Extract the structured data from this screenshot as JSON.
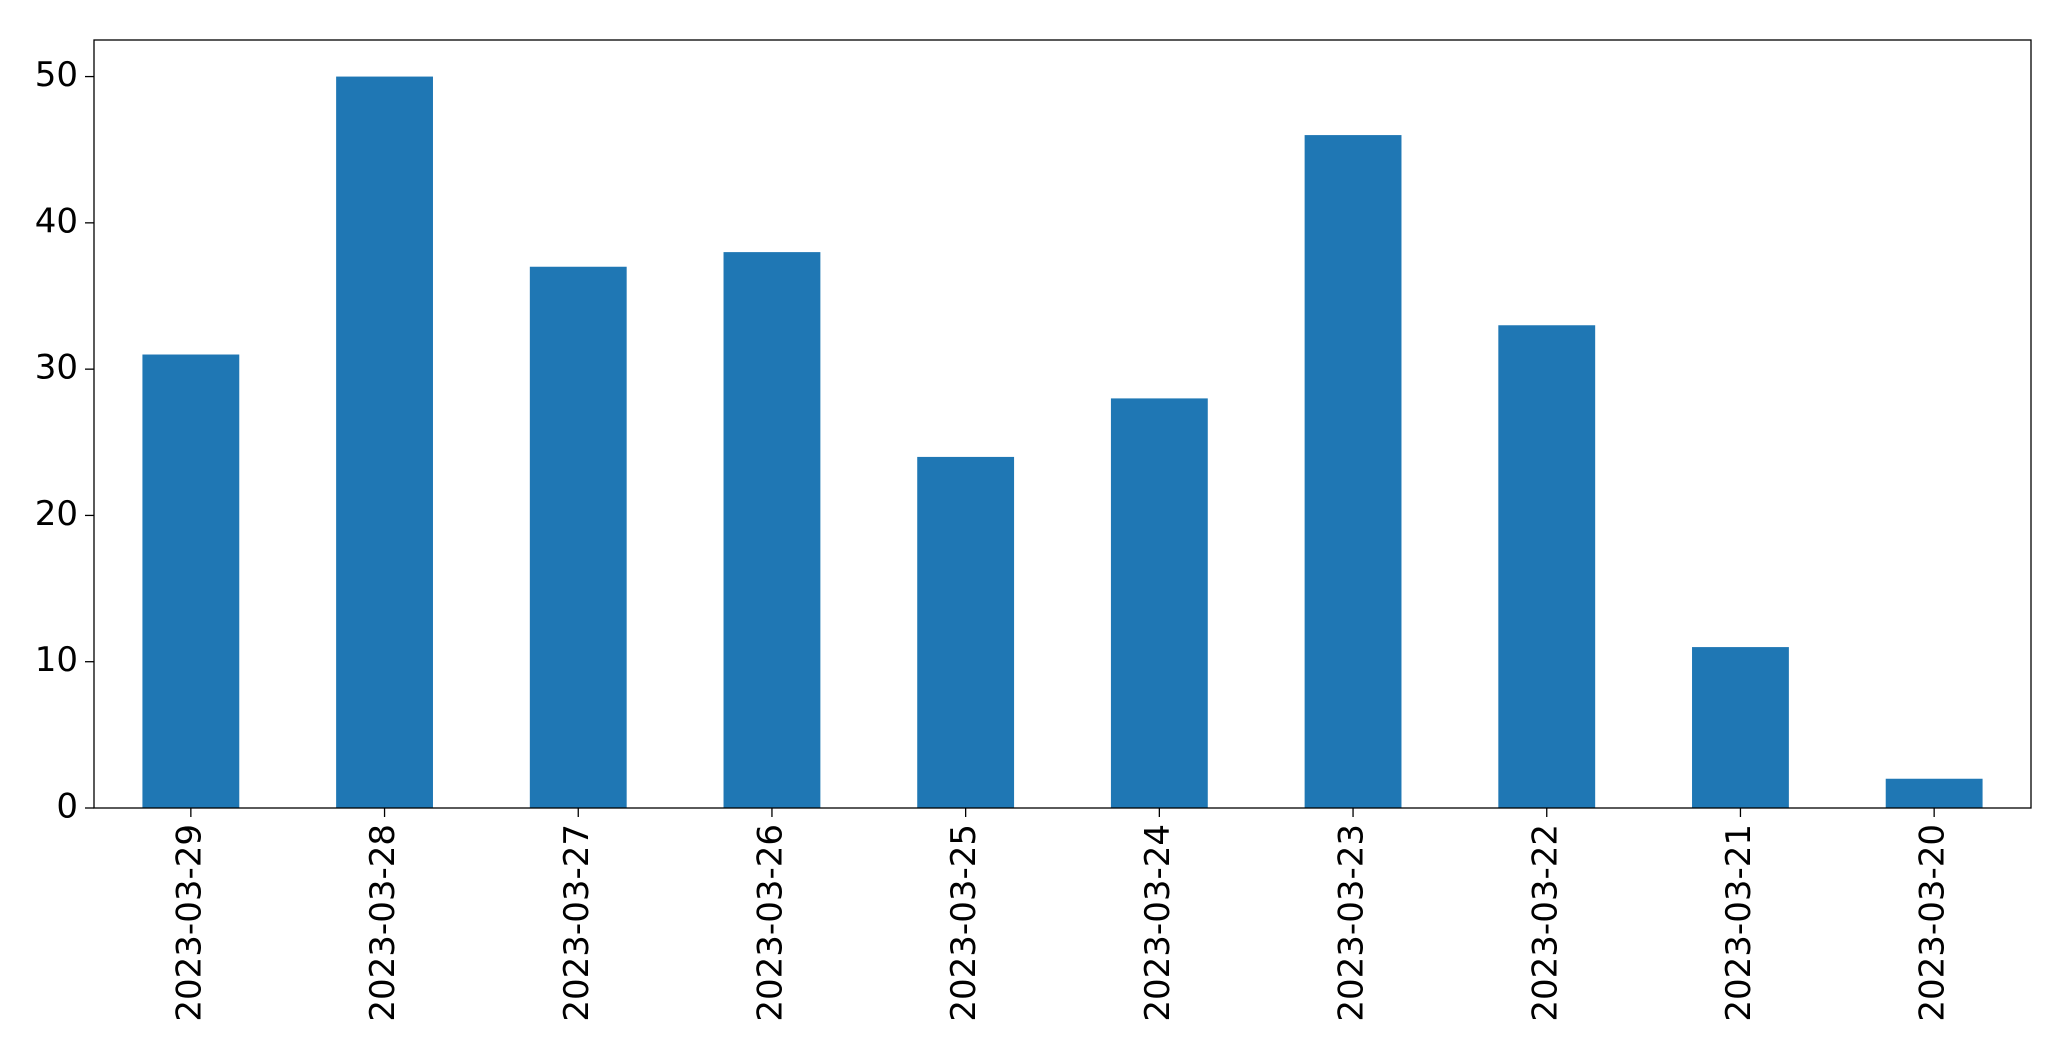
{
  "chart_data": {
    "type": "bar",
    "categories": [
      "2023-03-29",
      "2023-03-28",
      "2023-03-27",
      "2023-03-26",
      "2023-03-25",
      "2023-03-24",
      "2023-03-23",
      "2023-03-22",
      "2023-03-21",
      "2023-03-20"
    ],
    "values": [
      31,
      50,
      37,
      38,
      24,
      28,
      46,
      33,
      11,
      2
    ],
    "color": "#1f77b4",
    "ylim": [
      0,
      52.5
    ],
    "yticks": [
      0,
      10,
      20,
      30,
      40,
      50
    ],
    "grid": false
  }
}
